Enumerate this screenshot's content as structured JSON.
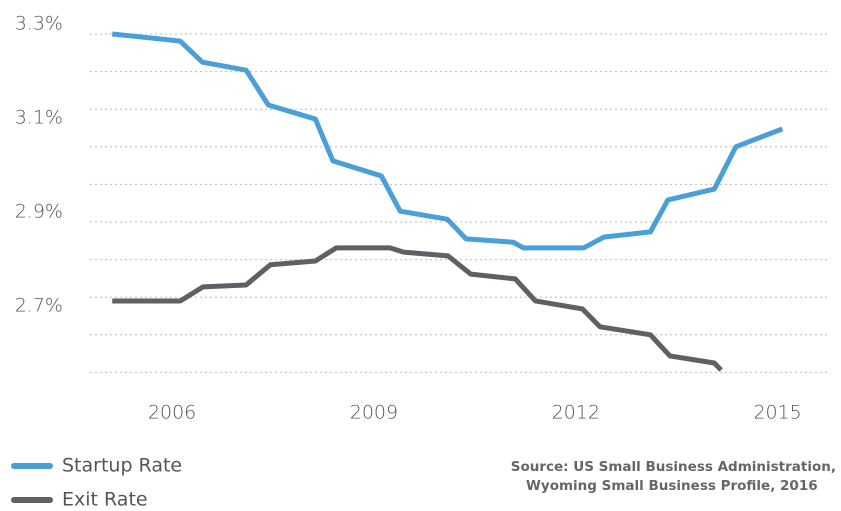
{
  "chart_data": {
    "type": "line",
    "source": [
      "Source: US Small Business Administration,",
      "Wyoming Small Business Profile, 2016"
    ],
    "xlim": [
      2004.72,
      2015.72
    ],
    "xticks": [
      2006,
      2009,
      2012,
      2015
    ],
    "ylim": [
      2.5,
      3.34
    ],
    "yticks": [
      {
        "value": 2.7,
        "label": "2.7%"
      },
      {
        "value": 2.9,
        "label": "2.9%"
      },
      {
        "value": 3.1,
        "label": "3.1%"
      },
      {
        "value": 3.3,
        "label": "3.3%"
      }
    ],
    "ygrid": [
      2.58,
      2.66,
      2.74,
      2.82,
      2.9,
      2.98,
      3.06,
      3.14,
      3.22,
      3.3
    ],
    "grid": true,
    "series": [
      {
        "name": "Startup Rate",
        "color": "#4a9fd8",
        "x": [
          2005.11,
          2006.12,
          2006.45,
          2007.1,
          2007.43,
          2008.13,
          2008.39,
          2009.11,
          2009.39,
          2010.09,
          2010.37,
          2011.07,
          2011.22,
          2012.12,
          2012.42,
          2013.11,
          2013.37,
          2014.06,
          2014.38,
          2015.07
        ],
        "values": [
          3.3,
          3.285,
          3.24,
          3.223,
          3.149,
          3.119,
          3.03,
          2.998,
          2.923,
          2.906,
          2.864,
          2.857,
          2.845,
          2.845,
          2.868,
          2.879,
          2.947,
          2.97,
          3.06,
          3.098
        ]
      },
      {
        "name": "Exit Rate",
        "color": "#5f5f66",
        "x": [
          2005.11,
          2006.12,
          2006.46,
          2007.1,
          2007.46,
          2008.13,
          2008.44,
          2009.24,
          2009.44,
          2010.1,
          2010.44,
          2011.1,
          2011.4,
          2012.1,
          2012.36,
          2013.11,
          2013.4,
          2014.06,
          2014.16
        ],
        "values": [
          2.732,
          2.732,
          2.762,
          2.766,
          2.809,
          2.817,
          2.845,
          2.845,
          2.836,
          2.828,
          2.789,
          2.779,
          2.732,
          2.715,
          2.677,
          2.66,
          2.615,
          2.6,
          2.585
        ]
      }
    ]
  }
}
